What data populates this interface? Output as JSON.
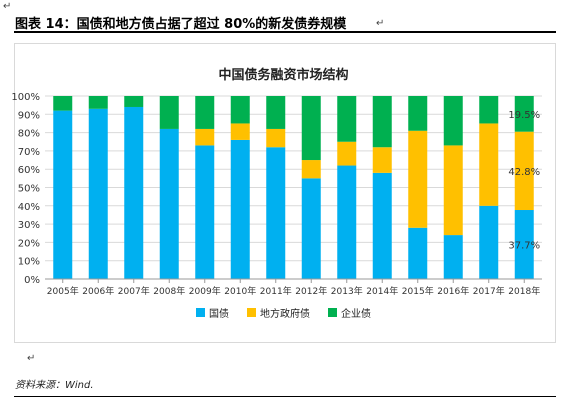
{
  "caption": "图表 14：国债和地方债占据了超过 80%的新发债券规模",
  "source": "资料来源：Wind.",
  "colors": {
    "国债": "#00b0f0",
    "地方政府债": "#ffc000",
    "企业债": "#00b050"
  },
  "chart_data": {
    "type": "bar",
    "stacked": true,
    "title": "中国债务融资市场结构",
    "categories": [
      "2005年",
      "2006年",
      "2007年",
      "2008年",
      "2009年",
      "2010年",
      "2011年",
      "2012年",
      "2013年",
      "2014年",
      "2015年",
      "2016年",
      "2017年",
      "2018年"
    ],
    "series": [
      {
        "name": "国债",
        "values": [
          92,
          93,
          94,
          82,
          73,
          76,
          72,
          55,
          62,
          58,
          28,
          24,
          40,
          37.7
        ]
      },
      {
        "name": "地方政府债",
        "values": [
          0,
          0,
          0,
          0,
          9,
          9,
          10,
          10,
          13,
          14,
          53,
          49,
          45,
          42.8
        ]
      },
      {
        "name": "企业债",
        "values": [
          8,
          7,
          6,
          18,
          18,
          15,
          18,
          35,
          25,
          28,
          19,
          27,
          15,
          19.5
        ]
      }
    ],
    "yticks": [
      "0%",
      "10%",
      "20%",
      "30%",
      "40%",
      "50%",
      "60%",
      "70%",
      "80%",
      "90%",
      "100%"
    ],
    "ylim": [
      0,
      100
    ],
    "data_labels": [
      {
        "series": "企业债",
        "category": "2018年",
        "text": "19.5%"
      },
      {
        "series": "地方政府债",
        "category": "2018年",
        "text": "42.8%"
      },
      {
        "series": "国债",
        "category": "2018年",
        "text": "37.7%"
      }
    ],
    "legend": "bottom"
  }
}
